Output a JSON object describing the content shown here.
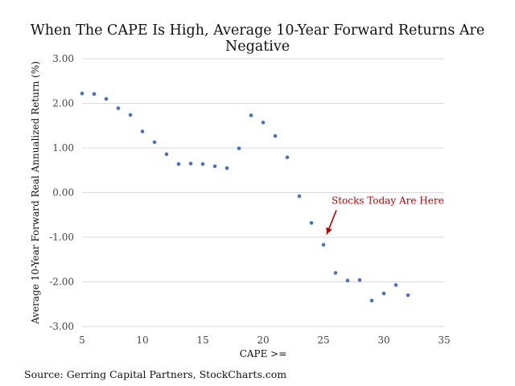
{
  "chart_data": {
    "type": "scatter",
    "title": "When The CAPE Is High, Average 10-Year Forward Returns Are Negative",
    "xlabel": "CAPE >=",
    "ylabel": "Average 10-Year Forward Real Annualized Return (%)",
    "xlim": [
      5,
      35
    ],
    "ylim": [
      -3,
      3
    ],
    "x_ticks": [
      5,
      10,
      15,
      20,
      25,
      30,
      35
    ],
    "y_ticks": [
      "3.00",
      "2.00",
      "1.00",
      "0.00",
      "-1.00",
      "-2.00",
      "-3.00"
    ],
    "y_tick_values": [
      3,
      2,
      1,
      0,
      -1,
      -2,
      -3
    ],
    "grid": "horizontal",
    "point_color": "#4472c4",
    "points": [
      {
        "x": 5,
        "y": 2.22
      },
      {
        "x": 6,
        "y": 2.21
      },
      {
        "x": 7,
        "y": 2.1
      },
      {
        "x": 8,
        "y": 1.89
      },
      {
        "x": 9,
        "y": 1.74
      },
      {
        "x": 10,
        "y": 1.37
      },
      {
        "x": 11,
        "y": 1.13
      },
      {
        "x": 12,
        "y": 0.86
      },
      {
        "x": 13,
        "y": 0.64
      },
      {
        "x": 14,
        "y": 0.65
      },
      {
        "x": 15,
        "y": 0.64
      },
      {
        "x": 16,
        "y": 0.59
      },
      {
        "x": 17,
        "y": 0.55
      },
      {
        "x": 18,
        "y": 0.99
      },
      {
        "x": 19,
        "y": 1.73
      },
      {
        "x": 20,
        "y": 1.57
      },
      {
        "x": 21,
        "y": 1.27
      },
      {
        "x": 22,
        "y": 0.79
      },
      {
        "x": 23,
        "y": -0.08
      },
      {
        "x": 24,
        "y": -0.68
      },
      {
        "x": 25,
        "y": -1.17
      },
      {
        "x": 26,
        "y": -1.8
      },
      {
        "x": 27,
        "y": -1.97
      },
      {
        "x": 28,
        "y": -1.96
      },
      {
        "x": 29,
        "y": -2.42
      },
      {
        "x": 30,
        "y": -2.26
      },
      {
        "x": 31,
        "y": -2.07
      },
      {
        "x": 32,
        "y": -2.3
      }
    ],
    "annotation": {
      "text": "Stocks Today Are Here",
      "color": "#c00000",
      "target": {
        "x": 25,
        "y": -1.17
      }
    }
  },
  "source": "Source: Gerring Capital Partners, StockCharts.com"
}
